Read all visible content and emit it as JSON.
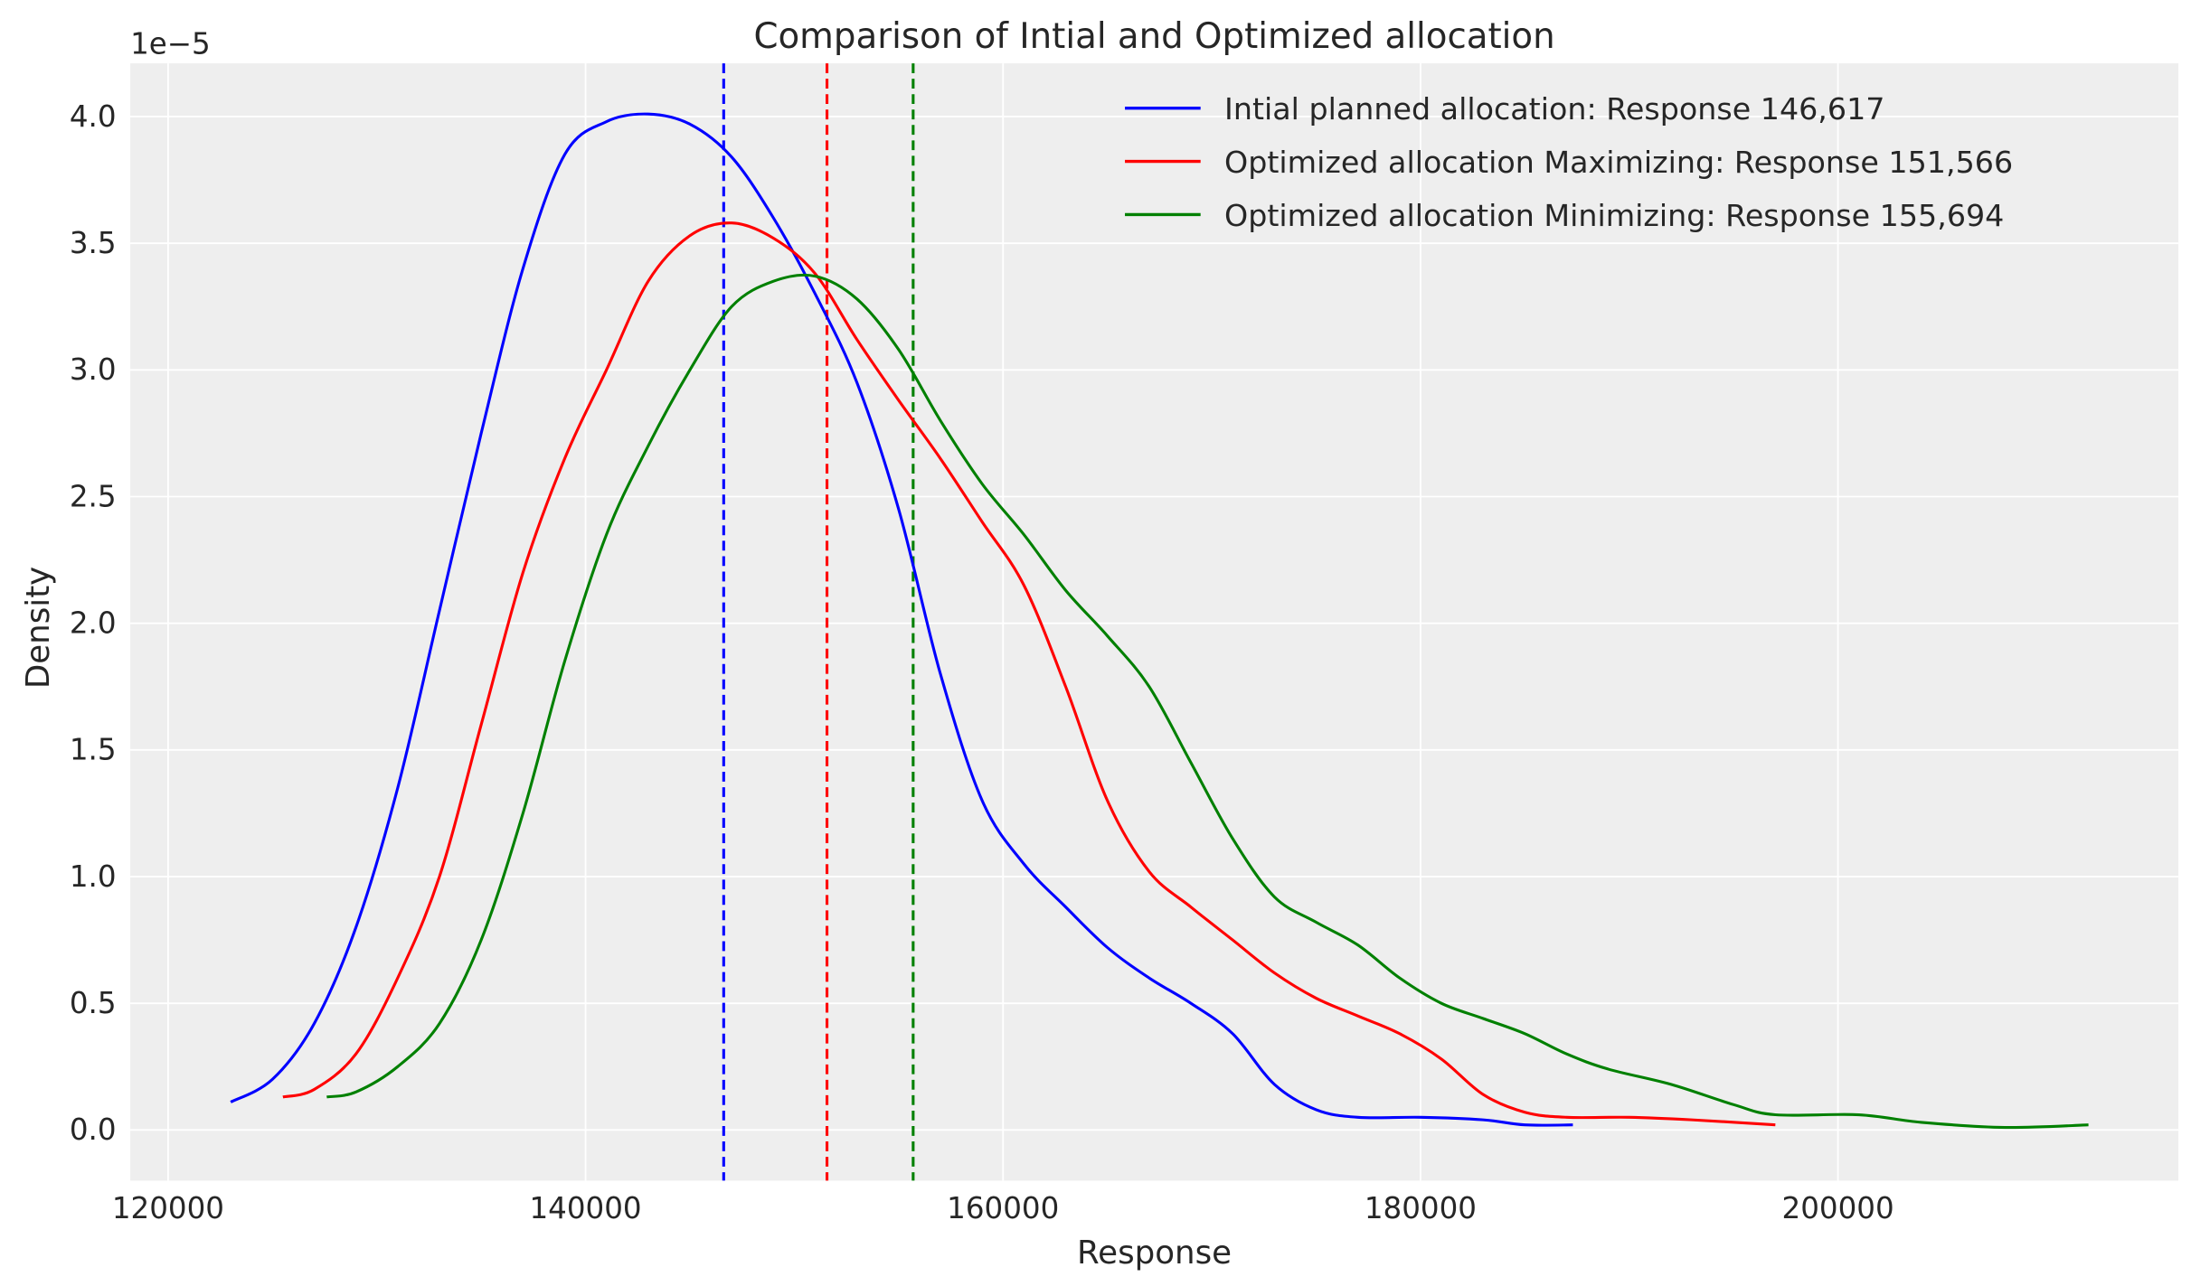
{
  "chart_data": {
    "type": "line",
    "title": "Comparison of Intial and Optimized allocation",
    "xlabel": "Response",
    "ylabel": "Density",
    "y_offset_label": "1e−5",
    "xlim": [
      118188,
      216309
    ],
    "ylim": [
      -0.2,
      4.21
    ],
    "y_scale_factor": 1e-05,
    "xticks": [
      120000,
      140000,
      160000,
      180000,
      200000
    ],
    "xtick_labels": [
      "120000",
      "140000",
      "160000",
      "180000",
      "200000"
    ],
    "yticks": [
      0,
      0.5,
      1,
      1.5,
      2,
      2.5,
      3,
      3.5,
      4
    ],
    "ytick_labels": [
      "0.0",
      "0.5",
      "1.0",
      "1.5",
      "2.0",
      "2.5",
      "3.0",
      "3.5",
      "4.0"
    ],
    "grid": true,
    "background": "#eeeeee",
    "legend_position": "top-right",
    "series": [
      {
        "name": "Intial planned allocation: Response 146,617",
        "color": "#0000ff",
        "mean": 146617,
        "x": [
          123000,
          125000,
          127000,
          129000,
          131000,
          133000,
          135000,
          137000,
          139000,
          141000,
          143000,
          145000,
          147000,
          149000,
          151000,
          153000,
          155000,
          157000,
          159000,
          161000,
          163000,
          165000,
          167000,
          169000,
          171000,
          173000,
          175000,
          177000,
          180000,
          183000,
          185000,
          187300
        ],
        "y": [
          0.11,
          0.2,
          0.42,
          0.8,
          1.35,
          2.05,
          2.75,
          3.4,
          3.85,
          3.98,
          4.01,
          3.97,
          3.84,
          3.6,
          3.3,
          2.95,
          2.45,
          1.8,
          1.3,
          1.05,
          0.88,
          0.72,
          0.6,
          0.5,
          0.38,
          0.18,
          0.08,
          0.05,
          0.05,
          0.04,
          0.02,
          0.02
        ]
      },
      {
        "name": "Optimized allocation Maximizing: Response 151,566",
        "color": "#ff0000",
        "mean": 151566,
        "x": [
          125500,
          127000,
          129000,
          131000,
          133000,
          135000,
          137000,
          139000,
          141000,
          143000,
          145000,
          147000,
          149000,
          151000,
          153000,
          155000,
          157000,
          159000,
          161000,
          163000,
          165000,
          167000,
          169000,
          171000,
          173000,
          175000,
          177000,
          179000,
          181000,
          183000,
          185000,
          187000,
          190000,
          193000,
          197000
        ],
        "y": [
          0.13,
          0.16,
          0.3,
          0.6,
          1.0,
          1.6,
          2.2,
          2.65,
          3.0,
          3.35,
          3.53,
          3.58,
          3.52,
          3.38,
          3.12,
          2.88,
          2.65,
          2.4,
          2.15,
          1.75,
          1.3,
          1.02,
          0.88,
          0.75,
          0.62,
          0.52,
          0.45,
          0.38,
          0.28,
          0.14,
          0.07,
          0.05,
          0.05,
          0.04,
          0.02
        ]
      },
      {
        "name": "Optimized allocation Minimizing: Response 155,694",
        "color": "#008000",
        "mean": 155694,
        "x": [
          127600,
          129000,
          131000,
          133000,
          135000,
          137000,
          139000,
          141000,
          143000,
          145000,
          147000,
          149000,
          151000,
          153000,
          155000,
          157000,
          159000,
          161000,
          163000,
          165000,
          167000,
          169000,
          171000,
          173000,
          175000,
          177000,
          179000,
          181000,
          183000,
          185000,
          187000,
          189000,
          192000,
          195000,
          197000,
          201000,
          204000,
          208000,
          212000
        ],
        "y": [
          0.13,
          0.15,
          0.25,
          0.42,
          0.75,
          1.25,
          1.85,
          2.35,
          2.7,
          3.0,
          3.25,
          3.35,
          3.37,
          3.28,
          3.08,
          2.8,
          2.55,
          2.35,
          2.13,
          1.95,
          1.75,
          1.45,
          1.15,
          0.92,
          0.82,
          0.73,
          0.6,
          0.5,
          0.44,
          0.38,
          0.3,
          0.24,
          0.18,
          0.1,
          0.06,
          0.06,
          0.03,
          0.01,
          0.02
        ]
      }
    ]
  }
}
